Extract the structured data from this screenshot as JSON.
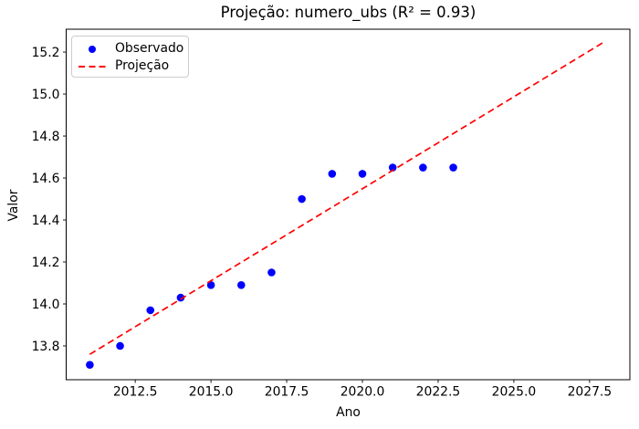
{
  "figure": {
    "background": "#ffffff",
    "text_color": "#000000",
    "legend_border_color": "#cccccc"
  },
  "chart_data": {
    "type": "scatter",
    "title": "Projeção: numero_ubs (R² = 0.93)",
    "r_squared": 0.93,
    "xlabel": "Ano",
    "ylabel": "Valor",
    "xlim": [
      2010.22,
      2028.83
    ],
    "ylim": [
      13.639,
      15.309
    ],
    "grid": false,
    "legend_position": "upper-left",
    "x_ticks": [
      {
        "v": 2012.5,
        "label": "2012.5"
      },
      {
        "v": 2015.0,
        "label": "2015.0"
      },
      {
        "v": 2017.5,
        "label": "2017.5"
      },
      {
        "v": 2020.0,
        "label": "2020.0"
      },
      {
        "v": 2022.5,
        "label": "2022.5"
      },
      {
        "v": 2025.0,
        "label": "2025.0"
      },
      {
        "v": 2027.5,
        "label": "2027.5"
      }
    ],
    "y_ticks": [
      {
        "v": 13.8,
        "label": "13.8"
      },
      {
        "v": 14.0,
        "label": "14.0"
      },
      {
        "v": 14.2,
        "label": "14.2"
      },
      {
        "v": 14.4,
        "label": "14.4"
      },
      {
        "v": 14.6,
        "label": "14.6"
      },
      {
        "v": 14.8,
        "label": "14.8"
      },
      {
        "v": 15.0,
        "label": "15.0"
      },
      {
        "v": 15.2,
        "label": "15.2"
      }
    ],
    "series": [
      {
        "name": "Observado",
        "type": "scatter",
        "marker": "circle",
        "color": "#0000ff",
        "x": [
          2011,
          2012,
          2013,
          2014,
          2015,
          2016,
          2017,
          2018,
          2019,
          2020,
          2021,
          2022,
          2023
        ],
        "y": [
          13.71,
          13.8,
          13.97,
          14.03,
          14.09,
          14.09,
          14.15,
          14.5,
          14.62,
          14.62,
          14.65,
          14.65,
          14.65
        ]
      },
      {
        "name": "Projeção",
        "type": "line",
        "style": "dashed",
        "color": "#ff0000",
        "x": [
          2011,
          2028
        ],
        "y": [
          13.76,
          15.25
        ]
      }
    ]
  }
}
